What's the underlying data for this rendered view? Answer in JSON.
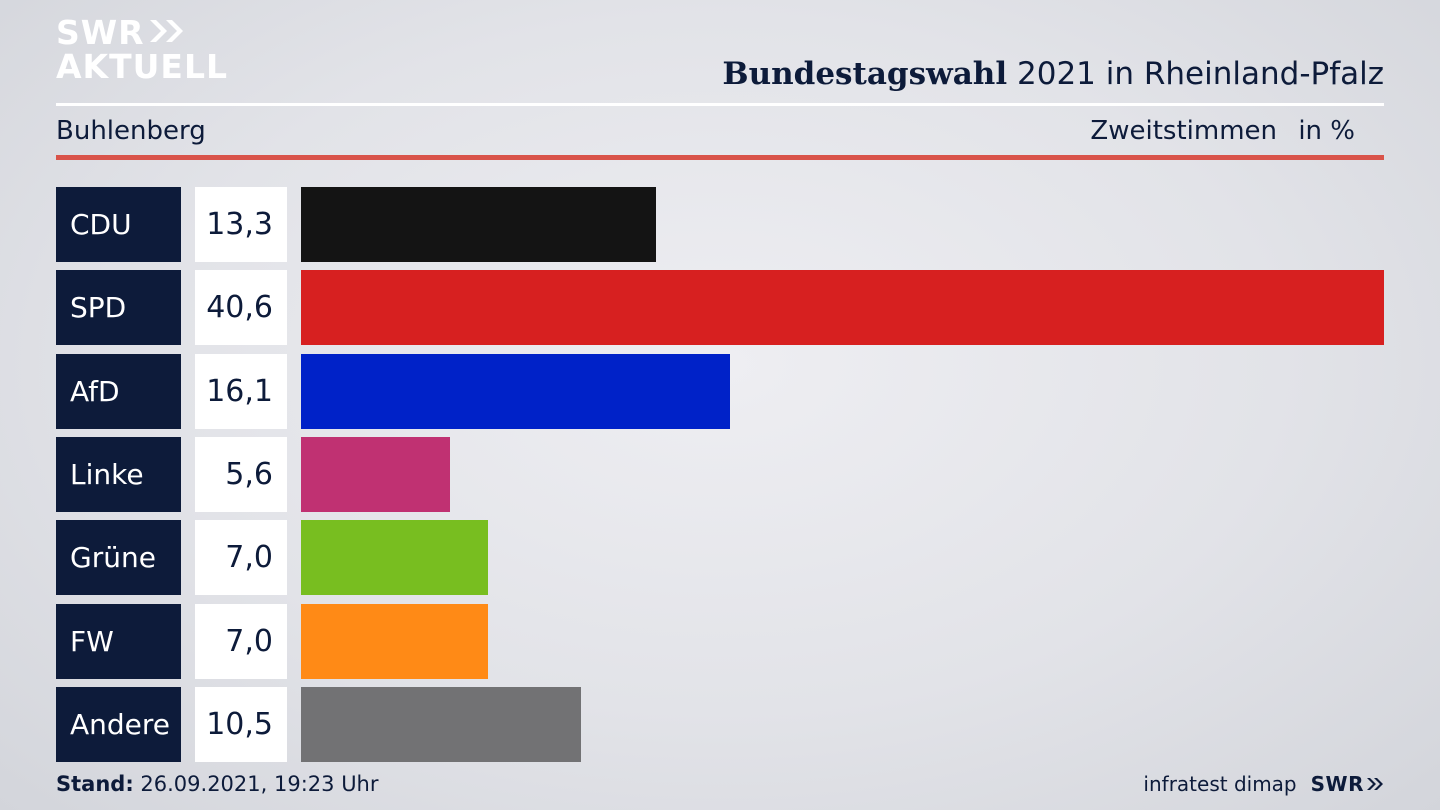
{
  "logo": {
    "line1": "SWR",
    "line2": "AKTUELL"
  },
  "header": {
    "title_bold": "Bundestagswahl",
    "title_rest": "2021 in Rheinland-Pfalz"
  },
  "subheader": {
    "location": "Buhlenberg",
    "metric": "Zweitstimmen",
    "unit": "in %"
  },
  "footer": {
    "stand_label": "Stand:",
    "stand_value": "26.09.2021, 19:23 Uhr",
    "source": "infratest dimap",
    "brand": "SWR"
  },
  "chart_data": {
    "type": "bar",
    "title": "Bundestagswahl 2021 in Rheinland-Pfalz",
    "subtitle": "Buhlenberg",
    "xlabel": "",
    "ylabel": "Zweitstimmen in %",
    "xmax": 40.6,
    "categories": [
      "CDU",
      "SPD",
      "AfD",
      "Linke",
      "Grüne",
      "FW",
      "Andere"
    ],
    "values": [
      13.3,
      40.6,
      16.1,
      5.6,
      7.0,
      7.0,
      10.5
    ],
    "labels": [
      "13,3",
      "40,6",
      "16,1",
      "5,6",
      "7,0",
      "7,0",
      "10,5"
    ],
    "colors": [
      "#141414",
      "#d72020",
      "#0022c8",
      "#c03172",
      "#78be20",
      "#ff8a16",
      "#727274"
    ]
  }
}
